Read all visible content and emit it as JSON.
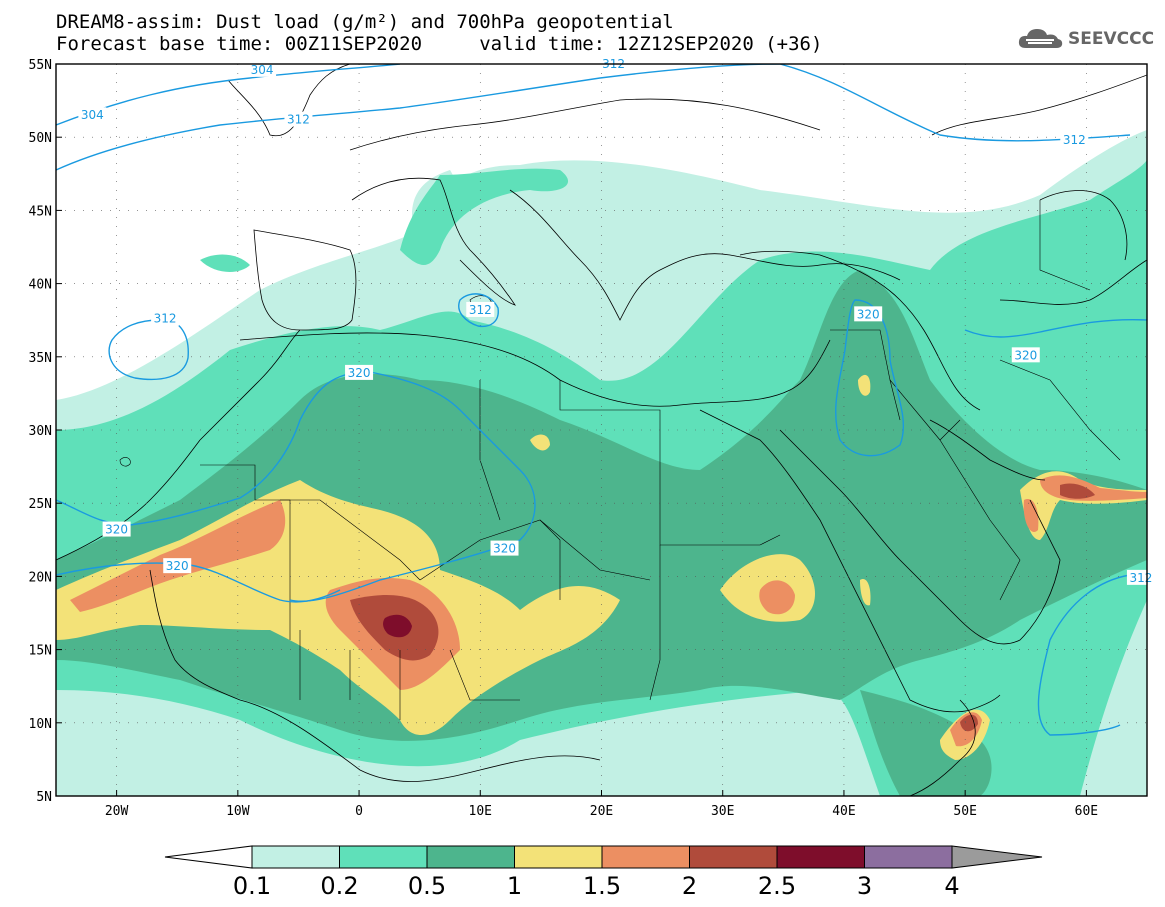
{
  "title": {
    "line1": "DREAM8-assim: Dust load (g/m²) and 700hPa geopotential",
    "line2": "Forecast base time: 00Z11SEP2020     valid time: 12Z12SEP2020 (+36)"
  },
  "logo": {
    "text": "SEEVCCC",
    "icon": "cloud-icon"
  },
  "axes": {
    "lat_labels": [
      "55N",
      "50N",
      "45N",
      "40N",
      "35N",
      "30N",
      "25N",
      "20N",
      "15N",
      "10N",
      "5N"
    ],
    "lat_values": [
      55,
      50,
      45,
      40,
      35,
      30,
      25,
      20,
      15,
      10,
      5
    ],
    "lon_labels": [
      "20W",
      "10W",
      "0",
      "10E",
      "20E",
      "30E",
      "40E",
      "50E",
      "60E"
    ],
    "lon_values": [
      -20,
      -10,
      0,
      10,
      20,
      30,
      40,
      50,
      60
    ],
    "lon_range": [
      -25,
      65
    ],
    "lat_range": [
      5,
      55
    ]
  },
  "contour_labels": [
    {
      "text": "304",
      "lon": -22,
      "lat": 51.5
    },
    {
      "text": "304",
      "lon": -8,
      "lat": 54.6
    },
    {
      "text": "312",
      "lon": -5,
      "lat": 51.2
    },
    {
      "text": "312",
      "lon": 21,
      "lat": 55
    },
    {
      "text": "312",
      "lon": 59,
      "lat": 49.8
    },
    {
      "text": "312",
      "lon": -16,
      "lat": 37.6
    },
    {
      "text": "312",
      "lon": 10,
      "lat": 38.2
    },
    {
      "text": "320",
      "lon": 42,
      "lat": 37.9
    },
    {
      "text": "320",
      "lon": 55,
      "lat": 35.1
    },
    {
      "text": "320",
      "lon": 0,
      "lat": 33.9
    },
    {
      "text": "320",
      "lon": -20,
      "lat": 23.2
    },
    {
      "text": "320",
      "lon": -15,
      "lat": 20.7
    },
    {
      "text": "320",
      "lon": 12,
      "lat": 21.9
    },
    {
      "text": "312",
      "lon": 64.5,
      "lat": 19.9
    }
  ],
  "colorbar": {
    "labels": [
      "0.1",
      "0.2",
      "0.5",
      "1",
      "1.5",
      "2",
      "2.5",
      "3",
      "4"
    ],
    "colors": [
      "#ffffff",
      "#c2f0e4",
      "#5fe0b9",
      "#4db58d",
      "#f3e278",
      "#ec8f62",
      "#b04b3b",
      "#7e0d2b",
      "#8c6e9f",
      "#9b9b9b"
    ]
  },
  "chart_data": {
    "type": "heatmap",
    "title": "DREAM8-assim: Dust load (g/m²) and 700hPa geopotential",
    "xlabel": "",
    "ylabel": "",
    "xlim": [
      -25,
      65
    ],
    "ylim": [
      5,
      55
    ],
    "levels": [
      0.1,
      0.2,
      0.5,
      1,
      1.5,
      2,
      2.5,
      3,
      4
    ],
    "geopotential_contours": [
      304,
      312,
      320
    ]
  }
}
